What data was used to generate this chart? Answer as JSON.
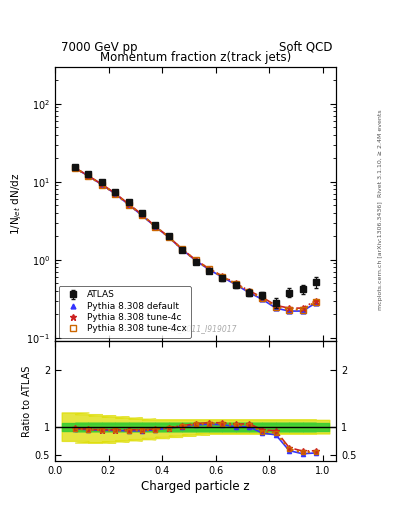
{
  "title_top_left": "7000 GeV pp",
  "title_top_right": "Soft QCD",
  "plot_title": "Momentum fraction z(track jets)",
  "ylabel_main": "1/N$_{jet}$ dN/dz",
  "ylabel_ratio": "Ratio to ATLAS",
  "xlabel": "Charged particle z",
  "right_label_top": "Rivet 3.1.10, ≥ 2.4M events",
  "right_label_bottom": "mcplots.cern.ch [arXiv:1306.3436]",
  "watermark": "ATLAS_2011_I919017",
  "ylim_main": [
    0.09,
    300
  ],
  "ylim_ratio": [
    0.4,
    2.5
  ],
  "xlim": [
    0.0,
    1.05
  ],
  "atlas_x": [
    0.075,
    0.125,
    0.175,
    0.225,
    0.275,
    0.325,
    0.375,
    0.425,
    0.475,
    0.525,
    0.575,
    0.625,
    0.675,
    0.725,
    0.775,
    0.825,
    0.875,
    0.925,
    0.975
  ],
  "atlas_y": [
    15.5,
    12.5,
    9.8,
    7.5,
    5.5,
    4.0,
    2.8,
    2.0,
    1.35,
    0.95,
    0.72,
    0.58,
    0.48,
    0.38,
    0.35,
    0.28,
    0.38,
    0.42,
    0.52
  ],
  "atlas_yerr": [
    0.5,
    0.4,
    0.3,
    0.25,
    0.2,
    0.15,
    0.1,
    0.08,
    0.06,
    0.05,
    0.04,
    0.04,
    0.04,
    0.04,
    0.04,
    0.04,
    0.05,
    0.06,
    0.08
  ],
  "py_x": [
    0.075,
    0.125,
    0.175,
    0.225,
    0.275,
    0.325,
    0.375,
    0.425,
    0.475,
    0.525,
    0.575,
    0.625,
    0.675,
    0.725,
    0.775,
    0.825,
    0.875,
    0.925,
    0.975
  ],
  "py_default_y": [
    15.0,
    11.8,
    9.2,
    7.0,
    5.1,
    3.7,
    2.65,
    1.95,
    1.35,
    0.98,
    0.75,
    0.6,
    0.48,
    0.38,
    0.31,
    0.24,
    0.22,
    0.22,
    0.28
  ],
  "py_4c_y": [
    15.1,
    11.9,
    9.3,
    7.1,
    5.2,
    3.8,
    2.68,
    1.97,
    1.37,
    1.0,
    0.77,
    0.62,
    0.5,
    0.4,
    0.33,
    0.26,
    0.24,
    0.24,
    0.3
  ],
  "py_4cx_y": [
    15.0,
    11.8,
    9.2,
    7.0,
    5.1,
    3.75,
    2.66,
    1.96,
    1.36,
    0.99,
    0.76,
    0.61,
    0.49,
    0.39,
    0.32,
    0.25,
    0.23,
    0.23,
    0.29
  ],
  "band_green_low": 0.93,
  "band_green_high": 1.07,
  "band_yellow_low_vals": [
    0.75,
    0.72,
    0.72,
    0.74,
    0.76,
    0.78,
    0.8,
    0.82,
    0.84,
    0.86,
    0.88,
    0.88,
    0.88,
    0.88,
    0.88,
    0.88,
    0.88,
    0.88,
    0.88
  ],
  "band_yellow_high_vals": [
    1.25,
    1.22,
    1.2,
    1.18,
    1.16,
    1.14,
    1.12,
    1.12,
    1.12,
    1.12,
    1.12,
    1.12,
    1.12,
    1.12,
    1.12,
    1.12,
    1.12,
    1.12,
    1.12
  ],
  "color_default": "#3333ff",
  "color_4c": "#cc2222",
  "color_4cx": "#cc6600",
  "color_atlas": "#111111",
  "color_band_green": "#33cc33",
  "color_band_yellow": "#dddd00"
}
